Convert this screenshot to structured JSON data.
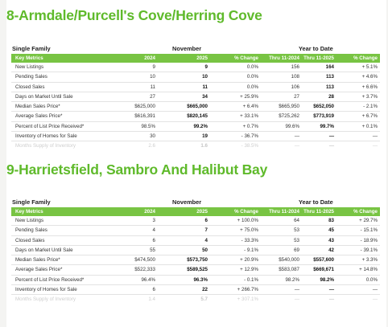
{
  "sections": [
    {
      "title": "8-Armdale/Purcell's Cove/Herring Cove",
      "property_type": "Single Family",
      "month_header": "November",
      "ytd_header": "Year to Date",
      "columns": [
        "Key Metrics",
        "2024",
        "2025",
        "% Change",
        "Thru 11-2024",
        "Thru 11-2025",
        "% Change"
      ],
      "rows": [
        [
          "New Listings",
          "9",
          "9",
          "0.0%",
          "156",
          "164",
          "+ 5.1%"
        ],
        [
          "Pending Sales",
          "10",
          "10",
          "0.0%",
          "108",
          "113",
          "+ 4.6%"
        ],
        [
          "Closed Sales",
          "11",
          "11",
          "0.0%",
          "106",
          "113",
          "+ 6.6%"
        ],
        [
          "Days on Market Until Sale",
          "27",
          "34",
          "+ 25.9%",
          "27",
          "28",
          "+ 3.7%"
        ],
        [
          "Median Sales Price*",
          "$625,000",
          "$665,000",
          "+ 6.4%",
          "$665,950",
          "$652,050",
          "- 2.1%"
        ],
        [
          "Average Sales Price*",
          "$616,391",
          "$820,145",
          "+ 33.1%",
          "$725,262",
          "$773,919",
          "+ 6.7%"
        ],
        [
          "Percent of List Price Received*",
          "98.5%",
          "99.2%",
          "+ 0.7%",
          "99.6%",
          "99.7%",
          "+ 0.1%"
        ],
        [
          "Inventory of Homes for Sale",
          "30",
          "19",
          "- 36.7%",
          "—",
          "—",
          "—"
        ]
      ],
      "faded_row": [
        "Months Supply of Inventory",
        "2.6",
        "1.6",
        "- 38.5%",
        "—",
        "—",
        "—"
      ]
    },
    {
      "title": "9-Harrietsfield, Sambro And Halibut Bay",
      "property_type": "Single Family",
      "month_header": "November",
      "ytd_header": "Year to Date",
      "columns": [
        "Key Metrics",
        "2024",
        "2025",
        "% Change",
        "Thru 11-2024",
        "Thru 11-2025",
        "% Change"
      ],
      "rows": [
        [
          "New Listings",
          "3",
          "6",
          "+ 100.0%",
          "64",
          "83",
          "+ 29.7%"
        ],
        [
          "Pending Sales",
          "4",
          "7",
          "+ 75.0%",
          "53",
          "45",
          "- 15.1%"
        ],
        [
          "Closed Sales",
          "6",
          "4",
          "- 33.3%",
          "53",
          "43",
          "- 18.9%"
        ],
        [
          "Days on Market Until Sale",
          "55",
          "50",
          "- 9.1%",
          "69",
          "42",
          "- 39.1%"
        ],
        [
          "Median Sales Price*",
          "$474,500",
          "$573,750",
          "+ 20.9%",
          "$540,000",
          "$557,600",
          "+ 3.3%"
        ],
        [
          "Average Sales Price*",
          "$522,333",
          "$589,525",
          "+ 12.9%",
          "$583,087",
          "$669,671",
          "+ 14.8%"
        ],
        [
          "Percent of List Price Received*",
          "96.4%",
          "96.3%",
          "- 0.1%",
          "98.2%",
          "98.2%",
          "0.0%"
        ],
        [
          "Inventory of Homes for Sale",
          "6",
          "22",
          "+ 266.7%",
          "—",
          "—",
          "—"
        ]
      ],
      "faded_row": [
        "Months Supply of Inventory",
        "1.4",
        "5.7",
        "+ 307.1%",
        "—",
        "—",
        "—"
      ]
    }
  ]
}
